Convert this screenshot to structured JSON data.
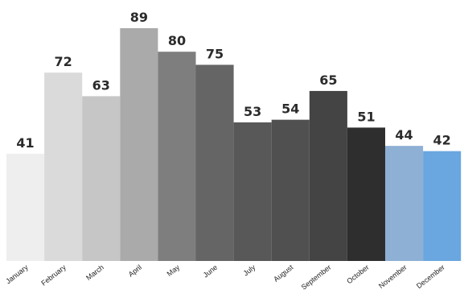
{
  "chart_data": {
    "type": "bar",
    "categories": [
      "January",
      "February",
      "March",
      "April",
      "May",
      "June",
      "July",
      "August",
      "September",
      "October",
      "November",
      "December"
    ],
    "values": [
      41,
      72,
      63,
      89,
      80,
      75,
      53,
      54,
      65,
      51,
      44,
      42
    ],
    "colors": [
      "#eeeeee",
      "#dadada",
      "#c6c6c6",
      "#aaaaaa",
      "#7e7e7e",
      "#656565",
      "#585858",
      "#505050",
      "#444444",
      "#2e2e2e",
      "#8eb0d4",
      "#6aa6e0"
    ],
    "title": "",
    "xlabel": "",
    "ylabel": "",
    "ylim": [
      0,
      89
    ],
    "grid": false,
    "legend": "none"
  }
}
